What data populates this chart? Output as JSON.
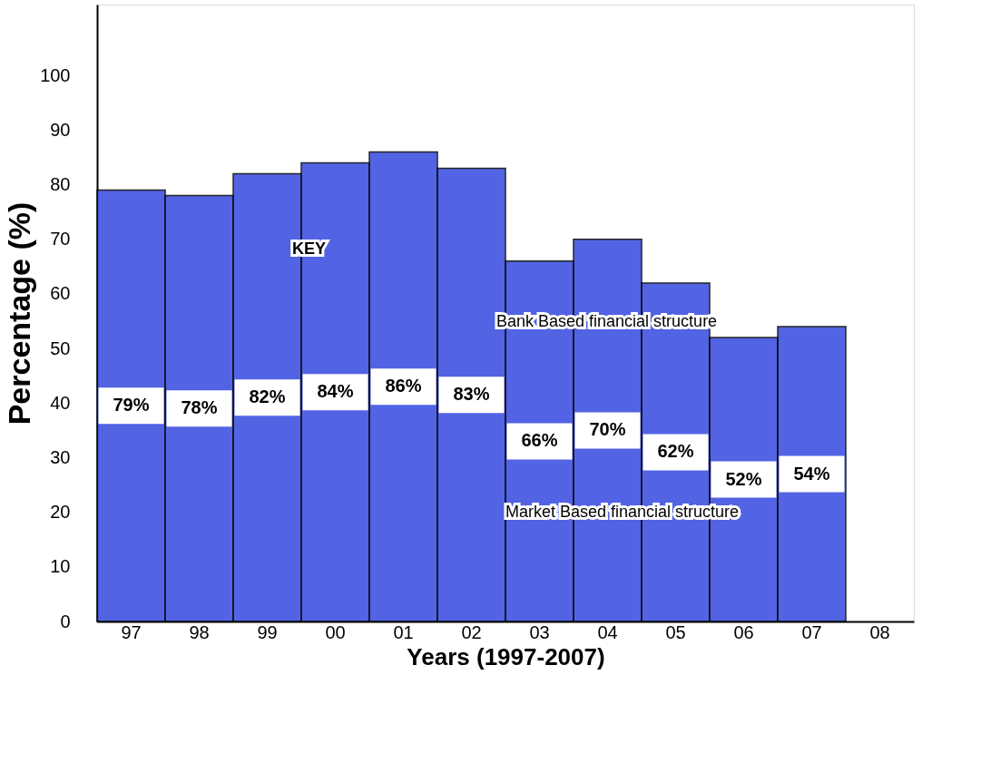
{
  "chart_data": {
    "type": "bar",
    "xlabel": "Years (1997-2007)",
    "ylabel": "Percentage (%)",
    "categories": [
      "97",
      "98",
      "99",
      "00",
      "01",
      "02",
      "03",
      "04",
      "05",
      "06",
      "07",
      "08"
    ],
    "values": [
      79,
      78,
      82,
      84,
      86,
      83,
      66,
      70,
      62,
      52,
      54,
      null
    ],
    "value_labels": [
      "79%",
      "78%",
      "82%",
      "84%",
      "86%",
      "83%",
      "66%",
      "70%",
      "62%",
      "52%",
      "54%",
      null
    ],
    "color": "#3548e0",
    "ylim": [
      0,
      113
    ],
    "yticks": [
      0,
      10,
      20,
      30,
      40,
      50,
      60,
      70,
      80,
      90,
      100
    ],
    "annotations": [
      "KEY",
      "Bank Based financial structure",
      "Market Based financial structure"
    ],
    "grid": false
  }
}
